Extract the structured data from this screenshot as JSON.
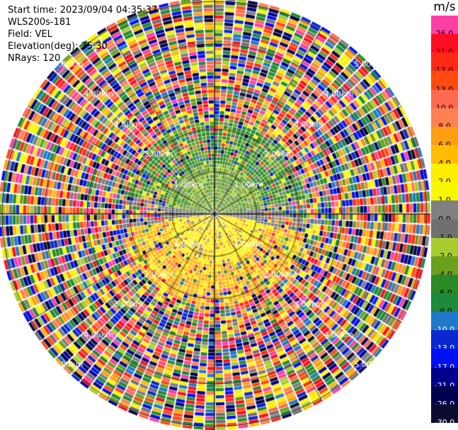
{
  "info": {
    "start_time": "Start time: 2023/09/04 04:35:37",
    "instrument": "WLS200s-181",
    "field": "Field: VEL",
    "elevation": "Elevation(deg): 35.30",
    "nrays": "NRays: 120"
  },
  "colorbar": {
    "unit": "m/s",
    "entries": [
      {
        "label": "26.0",
        "color": "#ff3fa6"
      },
      {
        "label": "21.0",
        "color": "#ff0d22"
      },
      {
        "label": "17.0",
        "color": "#ff2a14"
      },
      {
        "label": "13.0",
        "color": "#ff4a10"
      },
      {
        "label": "10.0",
        "color": "#ff6a50"
      },
      {
        "label": "8.0",
        "color": "#ff8050"
      },
      {
        "label": "6.0",
        "color": "#ff9e10"
      },
      {
        "label": "4.0",
        "color": "#ffbc00"
      },
      {
        "label": "2.0",
        "color": "#ffee00"
      },
      {
        "label": "1.0",
        "color": "#f8f800"
      },
      {
        "label": "0.0",
        "color": "#808080"
      },
      {
        "label": "-1.0",
        "color": "#707070"
      },
      {
        "label": "-2.0",
        "color": "#a8cc30"
      },
      {
        "label": "-4.0",
        "color": "#6aa020"
      },
      {
        "label": "-6.0",
        "color": "#2a8a26"
      },
      {
        "label": "-8.0",
        "color": "#1e8a3c"
      },
      {
        "label": "-10.0",
        "color": "#1e7ac8"
      },
      {
        "label": "-13.0",
        "color": "#0a28d0"
      },
      {
        "label": "-17.0",
        "color": "#0010f0"
      },
      {
        "label": "-21.0",
        "color": "#00008c"
      },
      {
        "label": "-26.0",
        "color": "#000050"
      },
      {
        "label": "-30.0",
        "color": "#0c0c30"
      }
    ]
  },
  "range_rings": [
    "1.00km",
    "2.00km",
    "3.00km",
    "4.00km",
    "5.00km"
  ]
}
